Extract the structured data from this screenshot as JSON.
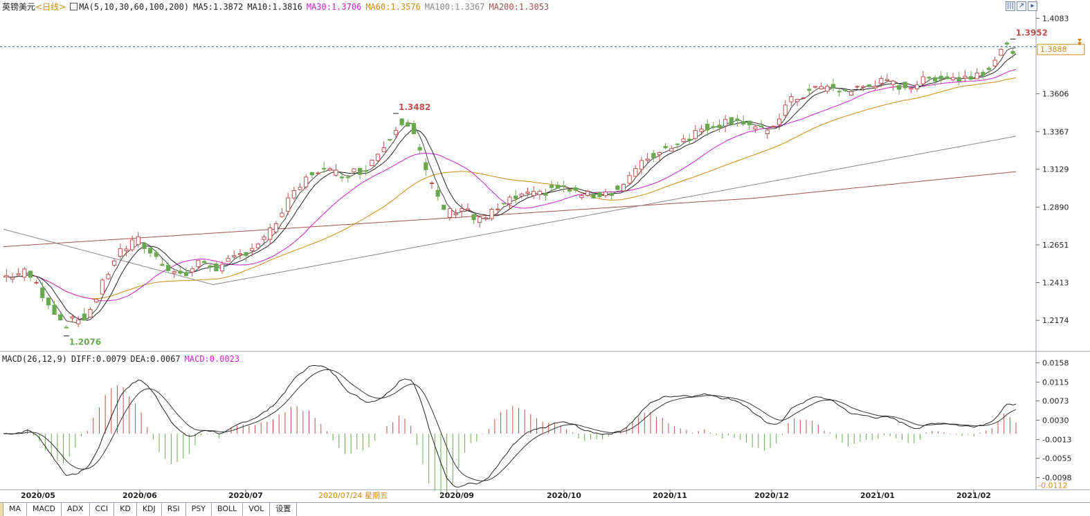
{
  "header": {
    "instrument": "英镑美元",
    "period": "<日线>",
    "ma_params": "MA(5,10,30,60,100,200)",
    "ma_values": [
      {
        "label": "MA5:",
        "value": "1.3872",
        "color": "#222222"
      },
      {
        "label": "MA10:",
        "value": "1.3816",
        "color": "#222222"
      },
      {
        "label": "MA30:",
        "value": "1.3706",
        "color": "#d01fd0"
      },
      {
        "label": "MA60:",
        "value": "1.3576",
        "color": "#d08a10"
      },
      {
        "label": "MA100:",
        "value": "1.3367",
        "color": "#888888"
      },
      {
        "label": "MA200:",
        "value": "1.3053",
        "color": "#a0504a"
      }
    ]
  },
  "price_axis": {
    "ticks": [
      "1.4083",
      "1.3606",
      "1.3367",
      "1.3129",
      "1.2890",
      "1.2651",
      "1.2413",
      "1.2174"
    ],
    "current_price": "1.3888"
  },
  "annotations": {
    "high_label": "1.3952",
    "mid_high_label": "1.3482",
    "low_label": "1.2076"
  },
  "macd_header": {
    "params": "MACD(26,12,9)",
    "diff": "DIFF:0.0079",
    "dea": "DEA:0.0067",
    "macd": "MACD:0.0023"
  },
  "macd_axis": {
    "ticks": [
      "0.0158",
      "0.0115",
      "0.0073",
      "0.0030",
      "-0.0013",
      "-0.0055",
      "-0.0098"
    ],
    "bottom_label": "-0.0112"
  },
  "date_axis": {
    "labels": [
      "2020/05",
      "2020/06",
      "2020/07",
      "2020/09",
      "2020/10",
      "2020/11",
      "2020/12",
      "2021/01",
      "2021/02"
    ],
    "cursor_label": "2020/07/24 星期五"
  },
  "tabs": [
    "",
    "MA",
    "MACD",
    "ADX",
    "CCI",
    "KD",
    "KDJ",
    "RSI",
    "PSY",
    "BOLL",
    "VOL",
    "设置"
  ],
  "colors": {
    "up": "#c0504d",
    "down": "#6aa84f",
    "accent": "#d08a10",
    "dotted_line": "#2f6db5"
  },
  "chart_data": {
    "type": "candlestick",
    "title": "英镑美元",
    "x_range": [
      "2020/05",
      "2021/02"
    ],
    "y_range": [
      1.2076,
      1.4083
    ],
    "keypoints": [
      {
        "date": "2020/05",
        "close": 1.245
      },
      {
        "date": "2020/05 low",
        "close": 1.2076
      },
      {
        "date": "2020/06",
        "close": 1.265
      },
      {
        "date": "2020/07",
        "close": 1.255
      },
      {
        "date": "2020/08",
        "close": 1.315
      },
      {
        "date": "2020/09 high",
        "close": 1.3482
      },
      {
        "date": "2020/09",
        "close": 1.275
      },
      {
        "date": "2020/10",
        "close": 1.295
      },
      {
        "date": "2020/11",
        "close": 1.315
      },
      {
        "date": "2020/12",
        "close": 1.345
      },
      {
        "date": "2021/01",
        "close": 1.365
      },
      {
        "date": "2021/02 high",
        "close": 1.3952
      },
      {
        "date": "2021/02",
        "close": 1.3888
      }
    ],
    "macd_range": [
      -0.0112,
      0.0158
    ]
  }
}
